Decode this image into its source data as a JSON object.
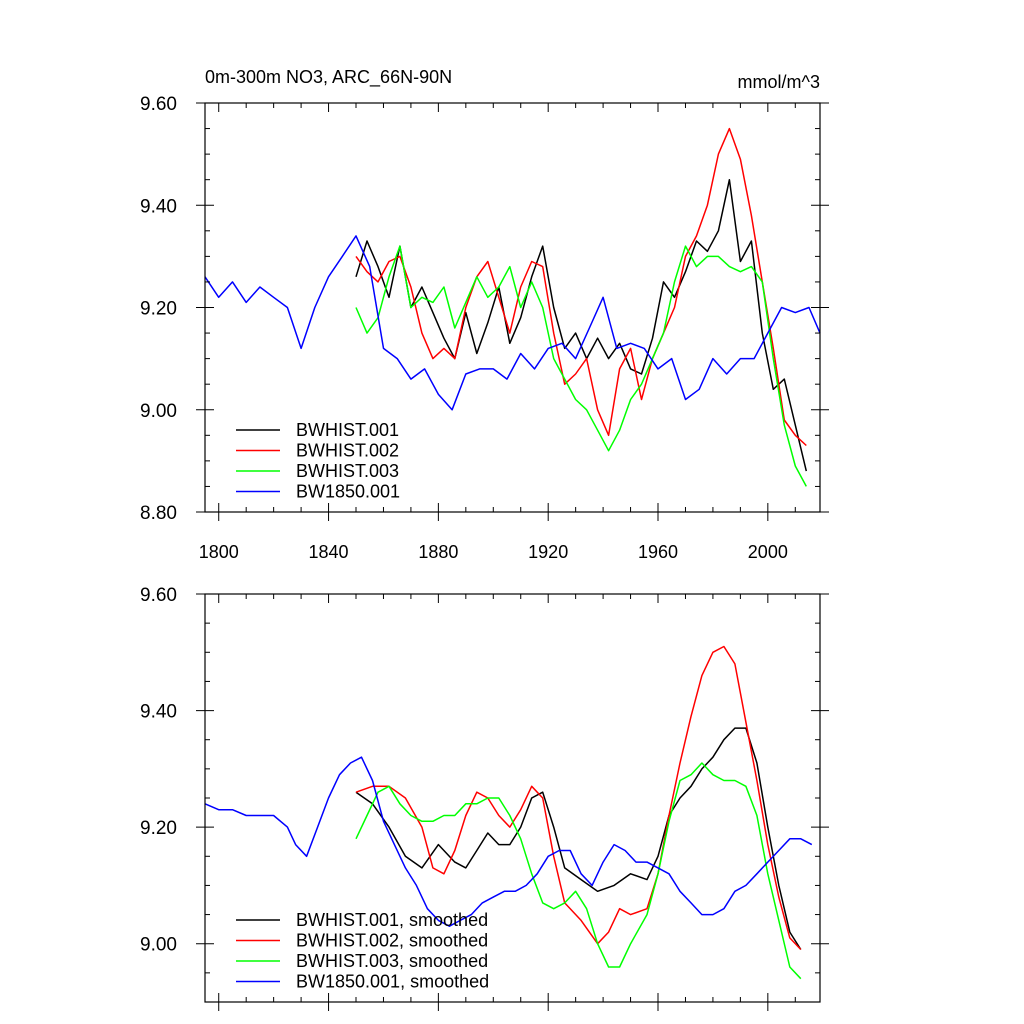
{
  "chart_data": [
    {
      "type": "line",
      "title": "0m-300m NO3, ARC_66N-90N",
      "units": "mmol/m^3",
      "xlabel": "",
      "ylabel": "",
      "xlim": [
        1795,
        2019
      ],
      "ylim": [
        8.8,
        9.6
      ],
      "xticks": [
        1800,
        1840,
        1880,
        1920,
        1960,
        2000
      ],
      "xtick_labels": [
        "1800",
        "1840",
        "1880",
        "1920",
        "1960",
        "2000"
      ],
      "yticks": [
        8.8,
        9.0,
        9.2,
        9.4,
        9.6
      ],
      "ytick_labels": [
        "8.80",
        "9.00",
        "9.20",
        "9.40",
        "9.60"
      ],
      "legend": "bottom-left",
      "grid": false,
      "series": [
        {
          "name": "BWHIST.001",
          "color": "#000000",
          "x": [
            1850,
            1854,
            1858,
            1862,
            1866,
            1870,
            1874,
            1878,
            1882,
            1886,
            1890,
            1894,
            1898,
            1902,
            1906,
            1910,
            1914,
            1918,
            1922,
            1926,
            1930,
            1934,
            1938,
            1942,
            1946,
            1950,
            1954,
            1958,
            1962,
            1966,
            1970,
            1974,
            1978,
            1982,
            1986,
            1990,
            1994,
            1998,
            2002,
            2006,
            2010,
            2014
          ],
          "values": [
            9.26,
            9.33,
            9.28,
            9.22,
            9.32,
            9.2,
            9.24,
            9.19,
            9.14,
            9.1,
            9.19,
            9.11,
            9.17,
            9.24,
            9.13,
            9.18,
            9.26,
            9.32,
            9.2,
            9.12,
            9.15,
            9.1,
            9.14,
            9.1,
            9.13,
            9.08,
            9.07,
            9.14,
            9.25,
            9.22,
            9.27,
            9.33,
            9.31,
            9.35,
            9.45,
            9.29,
            9.33,
            9.15,
            9.04,
            9.06,
            8.97,
            8.88
          ]
        },
        {
          "name": "BWHIST.002",
          "color": "#ff0000",
          "x": [
            1850,
            1854,
            1858,
            1862,
            1866,
            1870,
            1874,
            1878,
            1882,
            1886,
            1890,
            1894,
            1898,
            1902,
            1906,
            1910,
            1914,
            1918,
            1922,
            1926,
            1930,
            1934,
            1938,
            1942,
            1946,
            1950,
            1954,
            1958,
            1962,
            1966,
            1970,
            1974,
            1978,
            1982,
            1986,
            1990,
            1994,
            1998,
            2002,
            2006,
            2010,
            2014
          ],
          "values": [
            9.3,
            9.27,
            9.25,
            9.29,
            9.3,
            9.24,
            9.15,
            9.1,
            9.12,
            9.1,
            9.2,
            9.26,
            9.29,
            9.22,
            9.15,
            9.24,
            9.29,
            9.28,
            9.15,
            9.05,
            9.07,
            9.1,
            9.0,
            8.95,
            9.08,
            9.12,
            9.02,
            9.1,
            9.15,
            9.2,
            9.3,
            9.34,
            9.4,
            9.5,
            9.55,
            9.49,
            9.38,
            9.25,
            9.12,
            8.98,
            8.95,
            8.93
          ]
        },
        {
          "name": "BWHIST.003",
          "color": "#00ff00",
          "x": [
            1850,
            1854,
            1858,
            1862,
            1866,
            1870,
            1874,
            1878,
            1882,
            1886,
            1890,
            1894,
            1898,
            1902,
            1906,
            1910,
            1914,
            1918,
            1922,
            1926,
            1930,
            1934,
            1938,
            1942,
            1946,
            1950,
            1954,
            1958,
            1962,
            1966,
            1970,
            1974,
            1978,
            1982,
            1986,
            1990,
            1994,
            1998,
            2002,
            2006,
            2010,
            2014
          ],
          "values": [
            9.2,
            9.15,
            9.18,
            9.26,
            9.32,
            9.2,
            9.22,
            9.21,
            9.24,
            9.16,
            9.21,
            9.26,
            9.22,
            9.24,
            9.28,
            9.2,
            9.25,
            9.2,
            9.1,
            9.06,
            9.02,
            9.0,
            8.96,
            8.92,
            8.96,
            9.02,
            9.05,
            9.1,
            9.15,
            9.25,
            9.32,
            9.28,
            9.3,
            9.3,
            9.28,
            9.27,
            9.28,
            9.25,
            9.1,
            8.97,
            8.89,
            8.85
          ]
        },
        {
          "name": "BW1850.001",
          "color": "#0000ff",
          "x": [
            1795,
            1800,
            1805,
            1810,
            1815,
            1820,
            1825,
            1830,
            1835,
            1840,
            1845,
            1850,
            1855,
            1860,
            1865,
            1870,
            1875,
            1880,
            1885,
            1890,
            1895,
            1900,
            1905,
            1910,
            1915,
            1920,
            1925,
            1930,
            1935,
            1940,
            1945,
            1950,
            1955,
            1960,
            1965,
            1970,
            1975,
            1980,
            1985,
            1990,
            1995,
            2000,
            2005,
            2010,
            2015,
            2019
          ],
          "values": [
            9.26,
            9.22,
            9.25,
            9.21,
            9.24,
            9.22,
            9.2,
            9.12,
            9.2,
            9.26,
            9.3,
            9.34,
            9.28,
            9.12,
            9.1,
            9.06,
            9.08,
            9.03,
            9.0,
            9.07,
            9.08,
            9.08,
            9.06,
            9.11,
            9.08,
            9.12,
            9.13,
            9.1,
            9.16,
            9.22,
            9.12,
            9.13,
            9.12,
            9.08,
            9.1,
            9.02,
            9.04,
            9.1,
            9.07,
            9.1,
            9.1,
            9.15,
            9.2,
            9.19,
            9.2,
            9.15
          ]
        }
      ]
    },
    {
      "type": "line",
      "title": "",
      "xlabel": "",
      "ylabel": "",
      "xlim": [
        1795,
        2019
      ],
      "ylim": [
        8.9,
        9.6
      ],
      "xticks": [
        1800,
        1840,
        1880,
        1920,
        1960,
        2000
      ],
      "yticks": [
        9.0,
        9.2,
        9.4,
        9.6
      ],
      "ytick_labels": [
        "9.00",
        "9.20",
        "9.40",
        "9.60"
      ],
      "legend": "bottom-left",
      "grid": false,
      "series": [
        {
          "name": "BWHIST.001, smoothed",
          "color": "#000000",
          "x": [
            1850,
            1856,
            1862,
            1868,
            1874,
            1880,
            1886,
            1890,
            1894,
            1898,
            1902,
            1906,
            1910,
            1914,
            1918,
            1922,
            1926,
            1932,
            1938,
            1944,
            1950,
            1956,
            1960,
            1964,
            1968,
            1972,
            1976,
            1980,
            1984,
            1988,
            1992,
            1996,
            2000,
            2004,
            2008,
            2012
          ],
          "values": [
            9.26,
            9.24,
            9.2,
            9.15,
            9.13,
            9.17,
            9.14,
            9.13,
            9.16,
            9.19,
            9.17,
            9.17,
            9.2,
            9.25,
            9.26,
            9.2,
            9.13,
            9.11,
            9.09,
            9.1,
            9.12,
            9.11,
            9.15,
            9.22,
            9.25,
            9.27,
            9.3,
            9.32,
            9.35,
            9.37,
            9.37,
            9.31,
            9.2,
            9.1,
            9.02,
            8.99
          ]
        },
        {
          "name": "BWHIST.002, smoothed",
          "color": "#ff0000",
          "x": [
            1850,
            1856,
            1862,
            1868,
            1874,
            1878,
            1882,
            1886,
            1890,
            1894,
            1898,
            1902,
            1906,
            1910,
            1914,
            1918,
            1922,
            1926,
            1932,
            1938,
            1942,
            1946,
            1950,
            1956,
            1960,
            1964,
            1968,
            1972,
            1976,
            1980,
            1984,
            1988,
            1992,
            1996,
            2000,
            2004,
            2008,
            2012
          ],
          "values": [
            9.26,
            9.27,
            9.27,
            9.25,
            9.2,
            9.13,
            9.12,
            9.16,
            9.22,
            9.26,
            9.25,
            9.22,
            9.2,
            9.23,
            9.27,
            9.25,
            9.15,
            9.07,
            9.04,
            9.0,
            9.02,
            9.06,
            9.05,
            9.06,
            9.12,
            9.22,
            9.31,
            9.39,
            9.46,
            9.5,
            9.51,
            9.48,
            9.38,
            9.28,
            9.17,
            9.08,
            9.01,
            8.99
          ]
        },
        {
          "name": "BWHIST.003, smoothed",
          "color": "#00ff00",
          "x": [
            1850,
            1854,
            1858,
            1862,
            1866,
            1870,
            1874,
            1878,
            1882,
            1886,
            1890,
            1894,
            1898,
            1902,
            1906,
            1910,
            1914,
            1918,
            1922,
            1926,
            1930,
            1934,
            1938,
            1942,
            1946,
            1950,
            1956,
            1960,
            1964,
            1968,
            1972,
            1976,
            1980,
            1984,
            1988,
            1992,
            1996,
            2000,
            2004,
            2008,
            2012
          ],
          "values": [
            9.18,
            9.22,
            9.26,
            9.27,
            9.24,
            9.22,
            9.21,
            9.21,
            9.22,
            9.22,
            9.24,
            9.24,
            9.25,
            9.25,
            9.22,
            9.18,
            9.12,
            9.07,
            9.06,
            9.07,
            9.09,
            9.06,
            9.0,
            8.96,
            8.96,
            9.0,
            9.05,
            9.12,
            9.21,
            9.28,
            9.29,
            9.31,
            9.29,
            9.28,
            9.28,
            9.27,
            9.22,
            9.12,
            9.04,
            8.96,
            8.94
          ]
        },
        {
          "name": "BW1850.001, smoothed",
          "color": "#0000ff",
          "x": [
            1795,
            1800,
            1805,
            1810,
            1815,
            1820,
            1825,
            1828,
            1832,
            1836,
            1840,
            1844,
            1848,
            1852,
            1856,
            1860,
            1864,
            1868,
            1872,
            1876,
            1880,
            1884,
            1888,
            1892,
            1896,
            1900,
            1904,
            1908,
            1912,
            1916,
            1920,
            1924,
            1928,
            1932,
            1936,
            1940,
            1944,
            1948,
            1952,
            1956,
            1960,
            1964,
            1968,
            1972,
            1976,
            1980,
            1984,
            1988,
            1992,
            1996,
            2000,
            2004,
            2008,
            2012,
            2016
          ],
          "values": [
            9.24,
            9.23,
            9.23,
            9.22,
            9.22,
            9.22,
            9.2,
            9.17,
            9.15,
            9.2,
            9.25,
            9.29,
            9.31,
            9.32,
            9.28,
            9.21,
            9.17,
            9.13,
            9.1,
            9.06,
            9.04,
            9.03,
            9.04,
            9.05,
            9.07,
            9.08,
            9.09,
            9.09,
            9.1,
            9.12,
            9.15,
            9.16,
            9.16,
            9.12,
            9.1,
            9.14,
            9.17,
            9.16,
            9.14,
            9.14,
            9.13,
            9.12,
            9.09,
            9.07,
            9.05,
            9.05,
            9.06,
            9.09,
            9.1,
            9.12,
            9.14,
            9.16,
            9.18,
            9.18,
            9.17
          ]
        }
      ]
    }
  ]
}
